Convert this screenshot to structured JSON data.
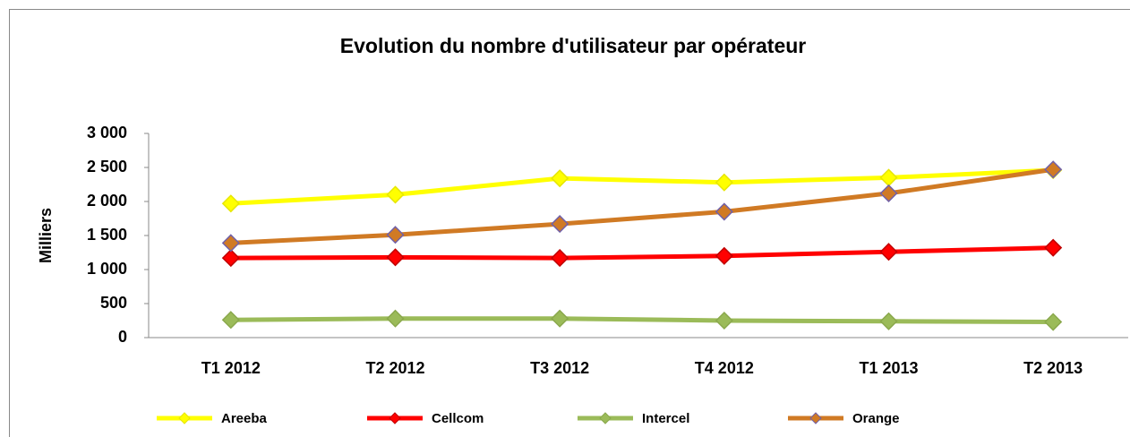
{
  "chart_data": {
    "type": "line",
    "title": "Evolution du nombre d'utilisateur par opérateur",
    "y_label": "Milliers",
    "categories": [
      "T1 2012",
      "T2 2012",
      "T3 2012",
      "T4 2012",
      "T1 2013",
      "T2 2013"
    ],
    "series": [
      {
        "name": "Areeba",
        "color": "#ffff00",
        "marker_stroke": "#e6e600",
        "values": [
          1970,
          2100,
          2340,
          2280,
          2350,
          2460
        ]
      },
      {
        "name": "Cellcom",
        "color": "#ff0000",
        "marker_stroke": "#c00000",
        "values": [
          1170,
          1180,
          1170,
          1200,
          1260,
          1320
        ]
      },
      {
        "name": "Intercel",
        "color": "#9bbb59",
        "marker_stroke": "#8aa84c",
        "values": [
          260,
          280,
          280,
          250,
          240,
          230
        ]
      },
      {
        "name": "Orange",
        "color": "#d07a24",
        "marker_stroke": "#7060a8",
        "values": [
          1390,
          1510,
          1670,
          1850,
          2120,
          2470
        ]
      }
    ],
    "ylim": [
      0,
      3000
    ],
    "yticks": [
      0,
      500,
      {
        "value": 1000,
        "label": "1 000"
      },
      {
        "value": 1500,
        "label": "1 500"
      },
      {
        "value": 2000,
        "label": "2 000"
      },
      {
        "value": 2500,
        "label": "2 500"
      },
      {
        "value": 3000,
        "label": "3 000"
      }
    ],
    "legend": "bottom"
  }
}
